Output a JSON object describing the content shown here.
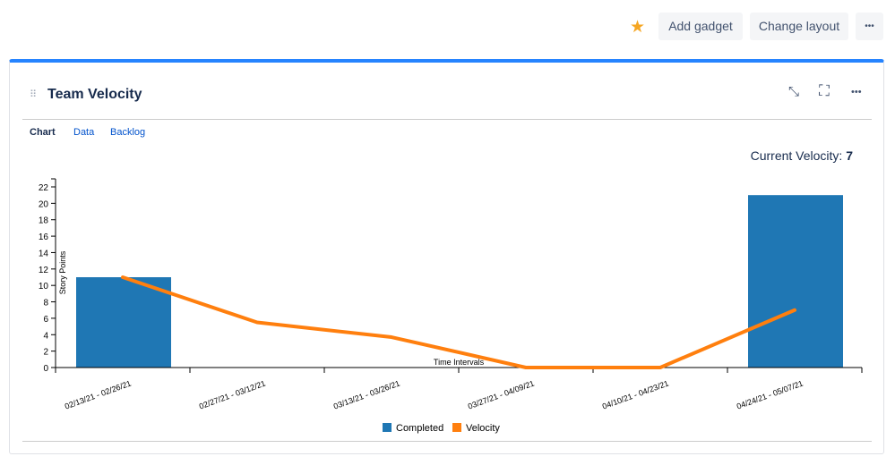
{
  "toolbar": {
    "star_icon": "star-icon",
    "add_gadget": "Add gadget",
    "change_layout": "Change layout",
    "more": "•••"
  },
  "gadget": {
    "title": "Team Velocity",
    "tabs": [
      "Chart",
      "Data",
      "Backlog"
    ],
    "current_velocity_label": "Current Velocity:",
    "current_velocity_value": "7",
    "accent": "#2684ff"
  },
  "chart_data": {
    "type": "bar",
    "categories": [
      "02/13/21 - 02/26/21",
      "02/27/21 - 03/12/21",
      "03/13/21 - 03/26/21",
      "03/27/21 - 04/09/21",
      "04/10/21 - 04/23/21",
      "04/24/21 - 05/07/21"
    ],
    "series": [
      {
        "name": "Completed",
        "type": "bar",
        "color": "#1f77b4",
        "values": [
          11,
          0,
          0,
          0,
          0,
          21
        ]
      },
      {
        "name": "Velocity",
        "type": "line",
        "color": "#ff7f0e",
        "values": [
          11,
          5.5,
          3.7,
          0,
          0,
          7
        ]
      }
    ],
    "xlabel": "Time Intervals",
    "ylabel": "Story Points",
    "ylim": [
      0,
      22
    ],
    "yticks": [
      0,
      2,
      4,
      6,
      8,
      10,
      12,
      14,
      16,
      18,
      20,
      22
    ],
    "legend": "bottom-center"
  }
}
